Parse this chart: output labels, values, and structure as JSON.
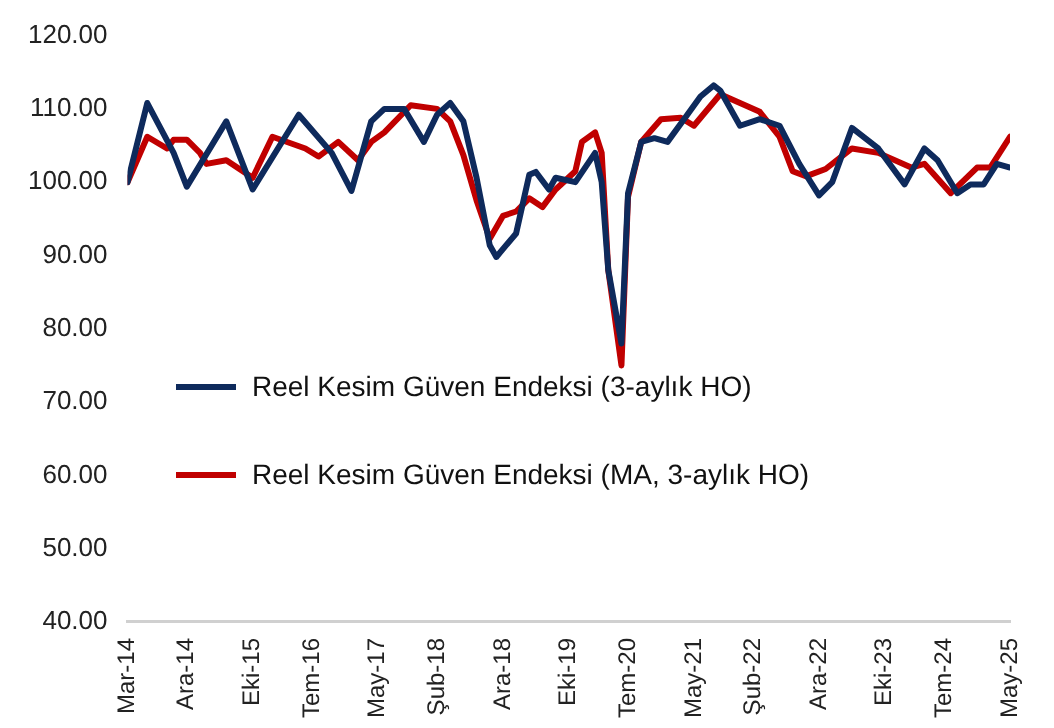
{
  "chart_data": {
    "type": "line",
    "xlim": [
      "2014-03",
      "2025-05"
    ],
    "xticks": [
      {
        "value": "2014-03",
        "label": "Mar-14"
      },
      {
        "value": "2014-12",
        "label": "Ara-14"
      },
      {
        "value": "2015-10",
        "label": "Eki-15"
      },
      {
        "value": "2016-07",
        "label": "Tem-16"
      },
      {
        "value": "2017-05",
        "label": "May-17"
      },
      {
        "value": "2018-02",
        "label": "Şub-18"
      },
      {
        "value": "2018-12",
        "label": "Ara-18"
      },
      {
        "value": "2019-10",
        "label": "Eki-19"
      },
      {
        "value": "2020-07",
        "label": "Tem-20"
      },
      {
        "value": "2021-05",
        "label": "May-21"
      },
      {
        "value": "2022-02",
        "label": "Şub-22"
      },
      {
        "value": "2022-12",
        "label": "Ara-22"
      },
      {
        "value": "2023-10",
        "label": "Eki-23"
      },
      {
        "value": "2024-07",
        "label": "Tem-24"
      },
      {
        "value": "2025-05",
        "label": "May-25"
      }
    ],
    "ylim": [
      40,
      120
    ],
    "yticks": [
      {
        "value": 40,
        "label": "40.00"
      },
      {
        "value": 50,
        "label": "50.00"
      },
      {
        "value": 60,
        "label": "60.00"
      },
      {
        "value": 70,
        "label": "70.00"
      },
      {
        "value": 80,
        "label": "80.00"
      },
      {
        "value": 90,
        "label": "90.00"
      },
      {
        "value": 100,
        "label": "100.00"
      },
      {
        "value": 110,
        "label": "110.00"
      },
      {
        "value": 120,
        "label": "120.00"
      }
    ],
    "grid": false,
    "legend": "bottom left",
    "marker": "none",
    "line_style": "solid",
    "series": [
      {
        "name": "Reel Kesim Güven Endeksi (3-aylık HO)",
        "color": "#0e2a5c",
        "x": [
          "2014-03",
          "2014-06",
          "2014-10",
          "2014-12",
          "2015-06",
          "2015-10",
          "2016-05",
          "2016-10",
          "2017-01",
          "2017-04",
          "2017-06",
          "2017-09",
          "2017-12",
          "2018-02",
          "2018-04",
          "2018-06",
          "2018-08",
          "2018-10",
          "2018-11",
          "2019-02",
          "2019-04",
          "2019-05",
          "2019-07",
          "2019-08",
          "2019-11",
          "2020-02",
          "2020-03",
          "2020-04",
          "2020-06",
          "2020-07",
          "2020-09",
          "2020-11",
          "2021-01",
          "2021-04",
          "2021-06",
          "2021-08",
          "2021-09",
          "2021-12",
          "2022-03",
          "2022-06",
          "2022-09",
          "2022-12",
          "2023-02",
          "2023-05",
          "2023-09",
          "2024-01",
          "2024-04",
          "2024-06",
          "2024-09",
          "2024-11",
          "2025-01",
          "2025-03",
          "2025-05"
        ],
        "values": [
          100,
          110.8,
          104,
          99.4,
          108.3,
          99,
          109.2,
          104,
          98.8,
          108.3,
          110,
          110,
          105.5,
          109.2,
          110.8,
          108.3,
          100.6,
          91.4,
          89.8,
          93,
          101,
          101.4,
          99,
          100.6,
          100,
          104,
          100,
          88,
          78,
          98.5,
          105.5,
          106,
          105.5,
          109.2,
          111.7,
          113.2,
          112.5,
          107.7,
          108.6,
          107.7,
          102.5,
          98.2,
          100,
          107.4,
          104.6,
          99.7,
          104.6,
          103,
          98.5,
          99.7,
          99.7,
          102.5,
          102
        ]
      },
      {
        "name": "Reel Kesim Güven Endeksi (MA, 3-aylık HO)",
        "color": "#c00000",
        "x": [
          "2014-03",
          "2014-06",
          "2014-09",
          "2014-10",
          "2014-12",
          "2015-02",
          "2015-03",
          "2015-06",
          "2015-10",
          "2016-01",
          "2016-06",
          "2016-08",
          "2016-11",
          "2017-02",
          "2017-04",
          "2017-06",
          "2017-10",
          "2018-02",
          "2018-04",
          "2018-06",
          "2018-08",
          "2018-10",
          "2018-12",
          "2019-02",
          "2019-04",
          "2019-06",
          "2019-08",
          "2019-11",
          "2019-12",
          "2020-02",
          "2020-03",
          "2020-04",
          "2020-06",
          "2020-07",
          "2020-09",
          "2020-12",
          "2021-03",
          "2021-05",
          "2021-09",
          "2021-12",
          "2022-03",
          "2022-06",
          "2022-08",
          "2022-10",
          "2023-01",
          "2023-05",
          "2023-09",
          "2024-02",
          "2024-04",
          "2024-08",
          "2024-12",
          "2025-02",
          "2025-05"
        ],
        "values": [
          100,
          106.2,
          104.6,
          105.8,
          105.8,
          104,
          102.5,
          103,
          100.6,
          106.2,
          104.6,
          103.5,
          105.5,
          103,
          105.5,
          106.8,
          110.5,
          110,
          108.3,
          103.7,
          97.5,
          92.3,
          95.4,
          96,
          97.8,
          96.6,
          99,
          101.5,
          105.5,
          106.8,
          104,
          88,
          75,
          98,
          105.5,
          108.6,
          108.8,
          107.7,
          112,
          110.8,
          109.6,
          106.2,
          101.5,
          100.8,
          101.8,
          104.6,
          104,
          102,
          102.5,
          98.5,
          102,
          102,
          106.2
        ]
      }
    ]
  }
}
